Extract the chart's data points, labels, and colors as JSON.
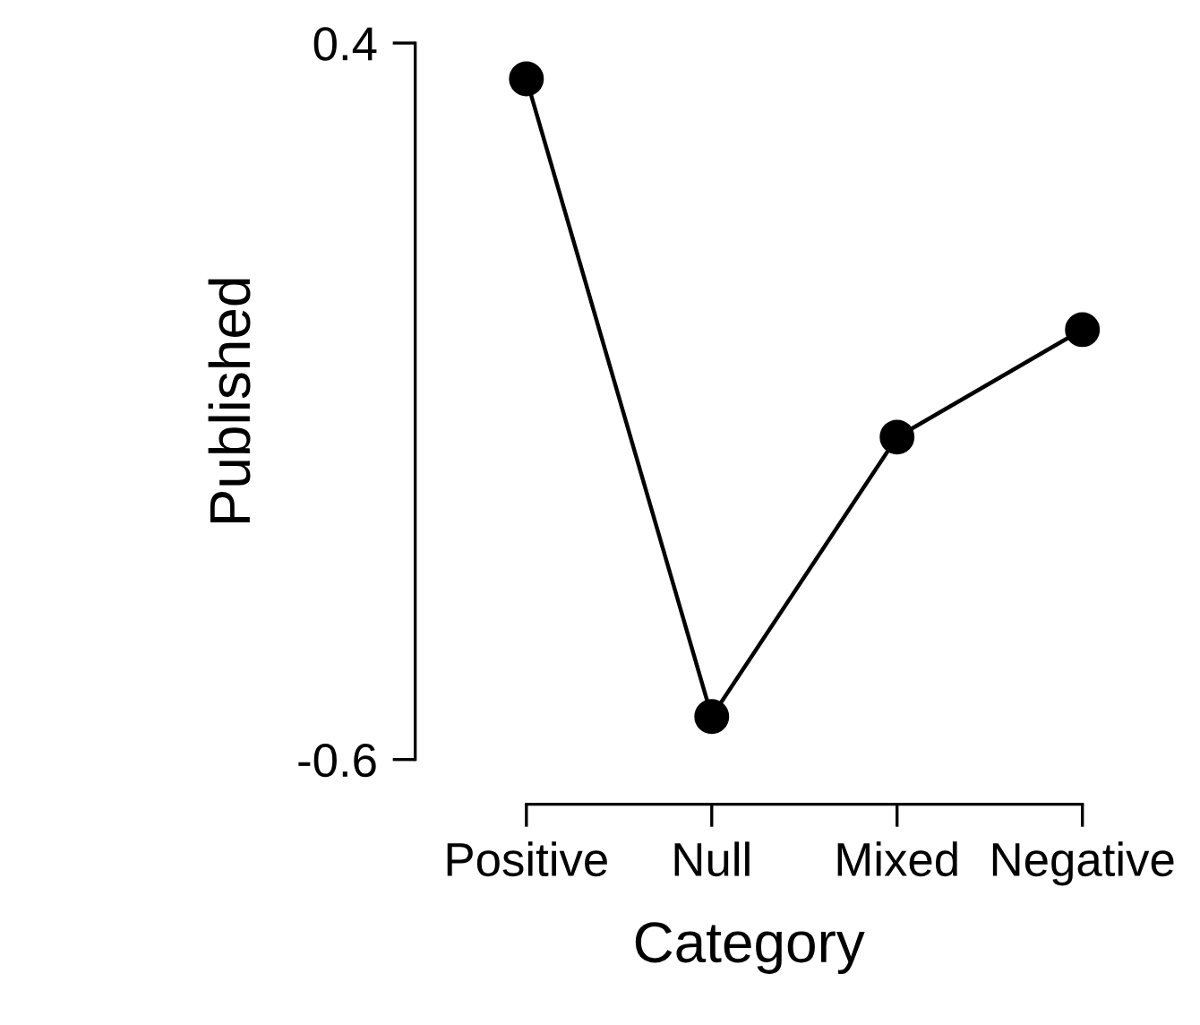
{
  "chart_data": {
    "type": "line",
    "xlabel": "Category",
    "ylabel": "Published",
    "categories": [
      "Positive",
      "Null",
      "Mixed",
      "Negative"
    ],
    "series": [
      {
        "color": "#000000",
        "values": [
          0.35,
          -0.54,
          -0.15,
          0.0
        ]
      }
    ],
    "ylim": [
      -0.6,
      0.4
    ],
    "yticks": [
      -0.6,
      0.4
    ],
    "marker": "circle",
    "line_style": "solid",
    "grid": false,
    "legend": false
  }
}
